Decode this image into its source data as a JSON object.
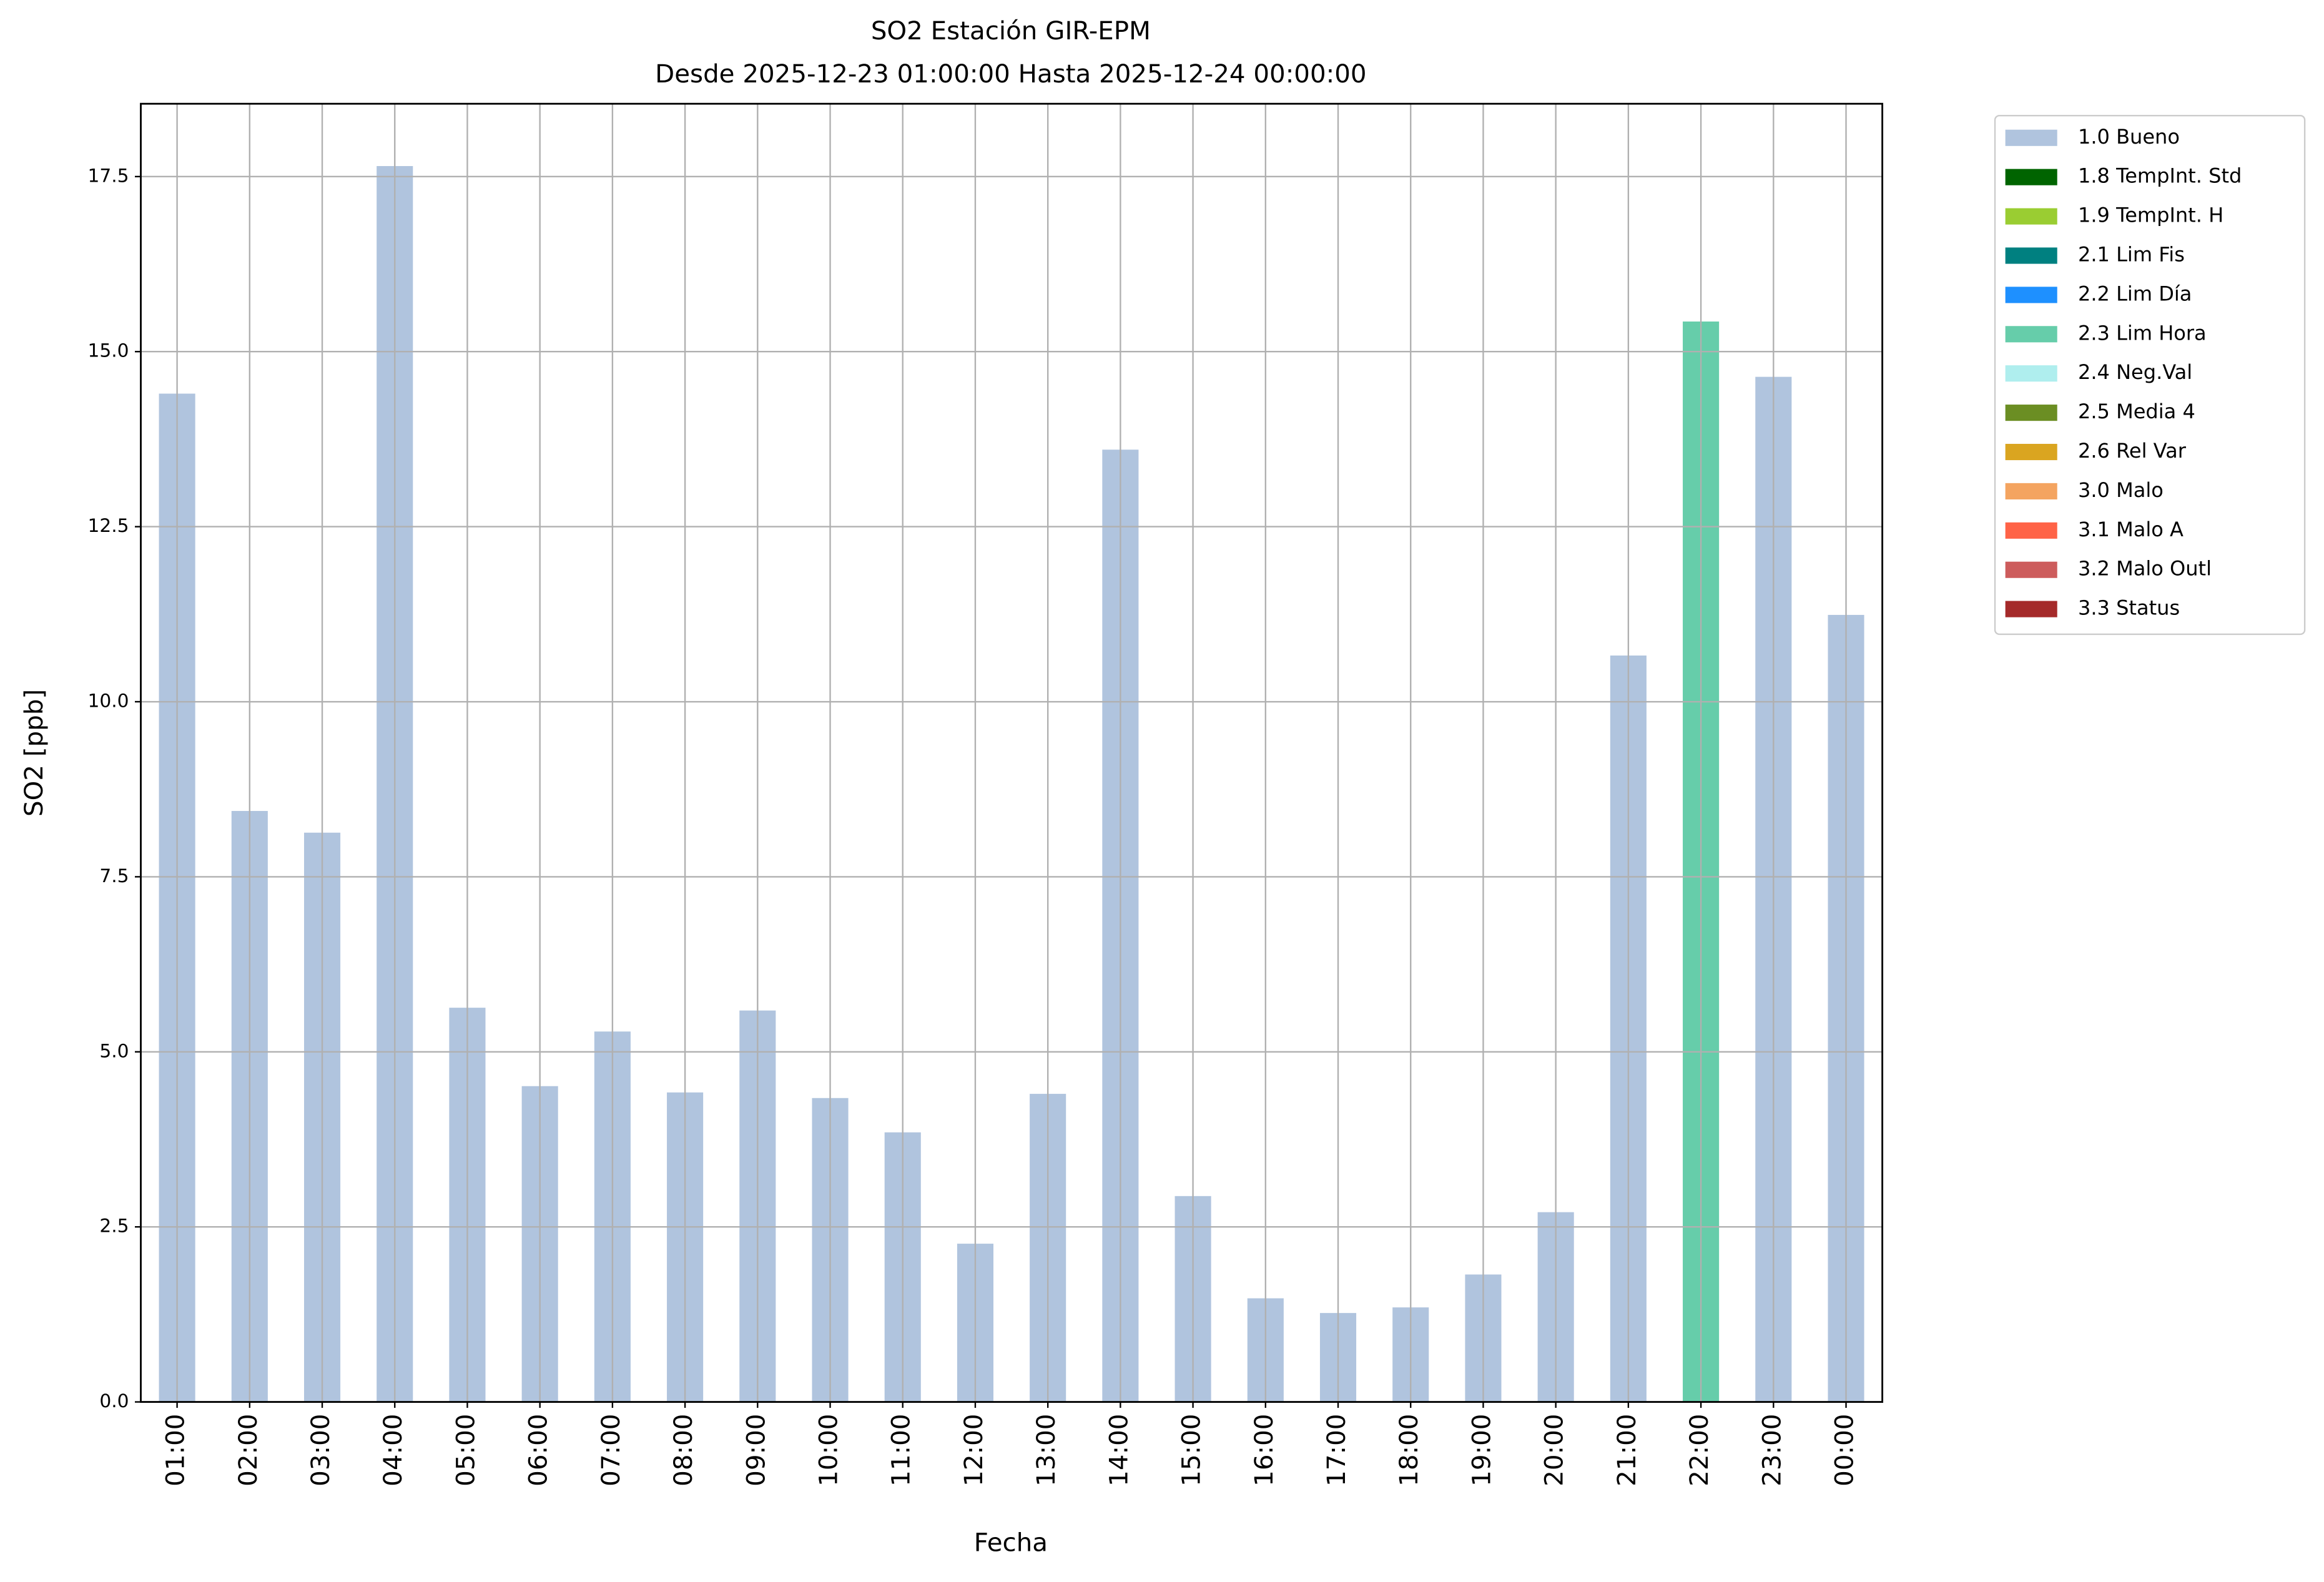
{
  "chart_data": {
    "type": "stacked_bar",
    "title": "SO2 Estación GIR-EPM",
    "subtitle": "Desde 2025-12-23 01:00:00 Hasta 2025-12-24 00:00:00",
    "x_label": "Fecha",
    "y_label": "SO2 [ppb]",
    "categories": [
      "01:00",
      "02:00",
      "03:00",
      "04:00",
      "05:00",
      "06:00",
      "07:00",
      "08:00",
      "09:00",
      "10:00",
      "11:00",
      "12:00",
      "13:00",
      "14:00",
      "15:00",
      "16:00",
      "17:00",
      "18:00",
      "19:00",
      "20:00",
      "21:00",
      "22:00",
      "23:00",
      "00:00"
    ],
    "series": [
      {
        "name": "1.0 Bueno",
        "color": "#b0c4de",
        "values": [
          14.4,
          8.44,
          8.13,
          17.65,
          5.63,
          4.51,
          5.29,
          4.42,
          5.59,
          4.34,
          3.85,
          2.26,
          4.4,
          13.6,
          2.94,
          1.48,
          1.27,
          1.35,
          1.82,
          2.71,
          10.66,
          null,
          14.64,
          11.24
        ]
      },
      {
        "name": "1.8 TempInt. Std",
        "color": "#006400",
        "values": [
          null,
          null,
          null,
          null,
          null,
          null,
          null,
          null,
          null,
          null,
          null,
          null,
          null,
          null,
          null,
          null,
          null,
          null,
          null,
          null,
          null,
          null,
          null,
          null
        ]
      },
      {
        "name": "1.9 TempInt. H",
        "color": "#9acd32",
        "values": [
          null,
          null,
          null,
          null,
          null,
          null,
          null,
          null,
          null,
          null,
          null,
          null,
          null,
          null,
          null,
          null,
          null,
          null,
          null,
          null,
          null,
          null,
          null,
          null
        ]
      },
      {
        "name": "2.1 Lim Fis",
        "color": "#008080",
        "values": [
          null,
          null,
          null,
          null,
          null,
          null,
          null,
          null,
          null,
          null,
          null,
          null,
          null,
          null,
          null,
          null,
          null,
          null,
          null,
          null,
          null,
          null,
          null,
          null
        ]
      },
      {
        "name": "2.2 Lim Día",
        "color": "#1e90ff",
        "values": [
          null,
          null,
          null,
          null,
          null,
          null,
          null,
          null,
          null,
          null,
          null,
          null,
          null,
          null,
          null,
          null,
          null,
          null,
          null,
          null,
          null,
          null,
          null,
          null
        ]
      },
      {
        "name": "2.3 Lim Hora",
        "color": "#66cdaa",
        "values": [
          null,
          null,
          null,
          null,
          null,
          null,
          null,
          null,
          null,
          null,
          null,
          null,
          null,
          null,
          null,
          null,
          null,
          null,
          null,
          null,
          null,
          15.43,
          null,
          null
        ]
      },
      {
        "name": "2.4 Neg.Val",
        "color": "#afeeee",
        "values": [
          null,
          null,
          null,
          null,
          null,
          null,
          null,
          null,
          null,
          null,
          null,
          null,
          null,
          null,
          null,
          null,
          null,
          null,
          null,
          null,
          null,
          null,
          null,
          null
        ]
      },
      {
        "name": "2.5 Media 4",
        "color": "#6b8e23",
        "values": [
          null,
          null,
          null,
          null,
          null,
          null,
          null,
          null,
          null,
          null,
          null,
          null,
          null,
          null,
          null,
          null,
          null,
          null,
          null,
          null,
          null,
          null,
          null,
          null
        ]
      },
      {
        "name": "2.6 Rel Var",
        "color": "#daa520",
        "values": [
          null,
          null,
          null,
          null,
          null,
          null,
          null,
          null,
          null,
          null,
          null,
          null,
          null,
          null,
          null,
          null,
          null,
          null,
          null,
          null,
          null,
          null,
          null,
          null
        ]
      },
      {
        "name": "3.0 Malo",
        "color": "#f4a460",
        "values": [
          null,
          null,
          null,
          null,
          null,
          null,
          null,
          null,
          null,
          null,
          null,
          null,
          null,
          null,
          null,
          null,
          null,
          null,
          null,
          null,
          null,
          null,
          null,
          null
        ]
      },
      {
        "name": "3.1 Malo A",
        "color": "#ff6347",
        "values": [
          null,
          null,
          null,
          null,
          null,
          null,
          null,
          null,
          null,
          null,
          null,
          null,
          null,
          null,
          null,
          null,
          null,
          null,
          null,
          null,
          null,
          null,
          null,
          null
        ]
      },
      {
        "name": "3.2 Malo Outl",
        "color": "#cd5c5c",
        "values": [
          null,
          null,
          null,
          null,
          null,
          null,
          null,
          null,
          null,
          null,
          null,
          null,
          null,
          null,
          null,
          null,
          null,
          null,
          null,
          null,
          null,
          null,
          null,
          null
        ]
      },
      {
        "name": "3.3 Status",
        "color": "#a52a2a",
        "values": [
          null,
          null,
          null,
          null,
          null,
          null,
          null,
          null,
          null,
          null,
          null,
          null,
          null,
          null,
          null,
          null,
          null,
          null,
          null,
          null,
          null,
          null,
          null,
          null
        ]
      }
    ],
    "ylim": [
      0,
      18.54
    ],
    "yticks": [
      {
        "value": 0,
        "label": "0.0"
      },
      2.5,
      {
        "value": 5,
        "label": "5.0"
      },
      7.5,
      {
        "value": 10,
        "label": "10.0"
      },
      12.5,
      {
        "value": 15,
        "label": "15.0"
      },
      17.5
    ],
    "grid": true,
    "legend_position": "outside-right"
  }
}
